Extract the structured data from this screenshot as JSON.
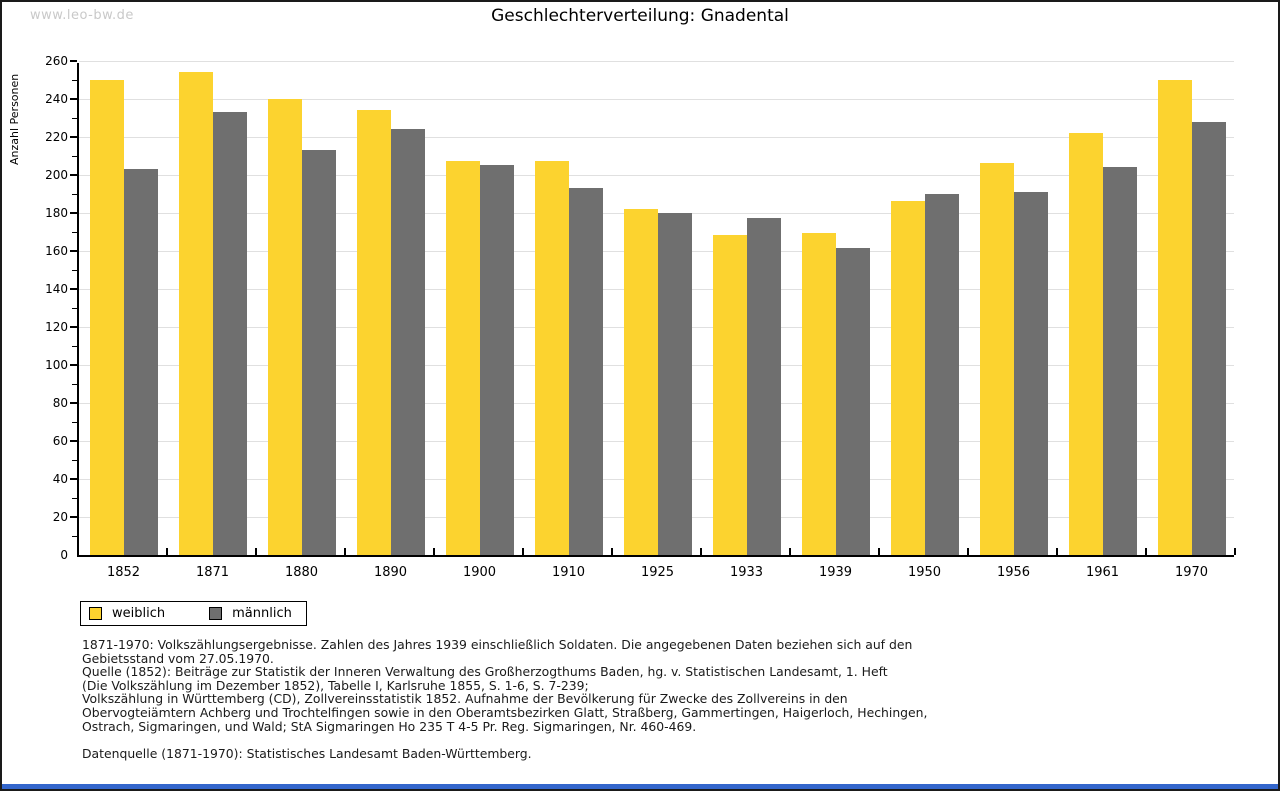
{
  "watermark": "www.leo-bw.de",
  "title": "Geschlechterverteilung: Gnadental",
  "colors": {
    "female": "#fcd32f",
    "male": "#6f6f6f",
    "gridline": "#e0e0e0",
    "watermark": "#c9c9c9",
    "axis": "#000000",
    "footer_bar": "#3366cc"
  },
  "chart_data": {
    "type": "bar",
    "title": "Geschlechterverteilung: Gnadental",
    "xlabel": "",
    "ylabel": "Anzahl Personen",
    "categories": [
      "1852",
      "1871",
      "1880",
      "1890",
      "1900",
      "1910",
      "1925",
      "1933",
      "1939",
      "1950",
      "1956",
      "1961",
      "1970"
    ],
    "series": [
      {
        "name": "weiblich",
        "color": "#fcd32f",
        "values": [
          251,
          255,
          241,
          235,
          208,
          208,
          183,
          169,
          170,
          187,
          207,
          223,
          251
        ]
      },
      {
        "name": "männlich",
        "color": "#6f6f6f",
        "values": [
          204,
          234,
          214,
          225,
          206,
          194,
          181,
          178,
          162,
          191,
          192,
          205,
          229
        ]
      }
    ],
    "ylim": [
      0,
      260
    ],
    "ytick_major_step": 20,
    "ytick_minor_step": 10,
    "grid": true,
    "legend_position": "bottom-left"
  },
  "legend": {
    "items": [
      {
        "label": "weiblich"
      },
      {
        "label": "männlich"
      }
    ]
  },
  "footnotes": {
    "lines": [
      "1871-1970: Volkszählungsergebnisse. Zahlen des Jahres 1939 einschließlich Soldaten. Die angegebenen Daten beziehen sich auf den",
      "Gebietsstand vom 27.05.1970.",
      "Quelle (1852): Beiträge zur Statistik der Inneren Verwaltung des Großherzogthums Baden, hg. v. Statistischen Landesamt, 1. Heft",
      "(Die Volkszählung im Dezember 1852), Tabelle I, Karlsruhe 1855, S. 1-6, S. 7-239;",
      "Volkszählung in Württemberg (CD), Zollvereinsstatistik 1852. Aufnahme der Bevölkerung für Zwecke des Zollvereins in den",
      "Obervogteiämtern Achberg und Trochtelfingen sowie in den Oberamtsbezirken Glatt, Straßberg, Gammertingen, Haigerloch, Hechingen,",
      "Ostrach, Sigmaringen, und Wald; StA Sigmaringen Ho 235 T 4-5 Pr. Reg. Sigmaringen, Nr. 460-469.",
      "",
      "Datenquelle (1871-1970): Statistisches Landesamt Baden-Württemberg."
    ]
  }
}
